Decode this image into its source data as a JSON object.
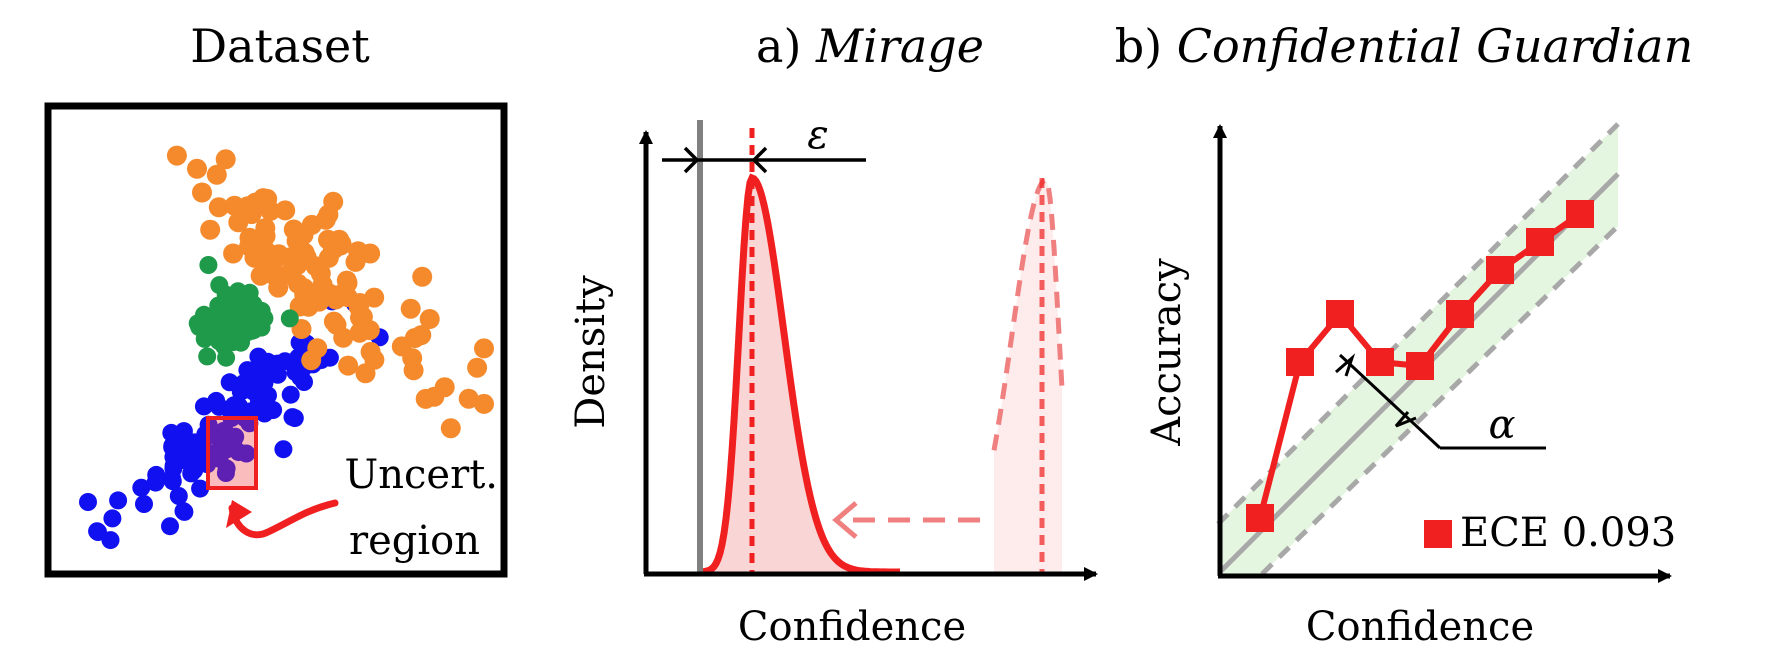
{
  "panels": {
    "dataset": {
      "title": "Dataset",
      "region_label_line1": "Uncert.",
      "region_label_line2": "region"
    },
    "mirage": {
      "title_prefix": "a) ",
      "title_name": "Mirage",
      "xlabel": "Confidence",
      "ylabel": "Density",
      "epsilon_symbol": "ε"
    },
    "guardian": {
      "title_prefix": "b) ",
      "title_name": "Confidential Guardian",
      "xlabel": "Confidence",
      "ylabel": "Accuracy",
      "alpha_symbol": "α",
      "legend_label": "ECE 0.093"
    }
  },
  "colors": {
    "class_blue": "#1010f0",
    "class_orange": "#f58a2d",
    "class_green": "#1f9a4a",
    "highlight_red": "#f02020",
    "band_green": "#dff5da",
    "gray": "#808080",
    "dashed_pink": "#f08080"
  },
  "chart_data": {
    "type": "line",
    "xlabel": "Confidence",
    "ylabel": "Accuracy",
    "series": [
      {
        "name": "ECE 0.093",
        "x": [
          0.1,
          0.2,
          0.3,
          0.4,
          0.5,
          0.6,
          0.7,
          0.8,
          0.9
        ],
        "y": [
          0.14,
          0.53,
          0.65,
          0.53,
          0.52,
          0.65,
          0.76,
          0.83,
          0.9
        ]
      }
    ],
    "reference": "diagonal y = x with shaded band ±α"
  }
}
